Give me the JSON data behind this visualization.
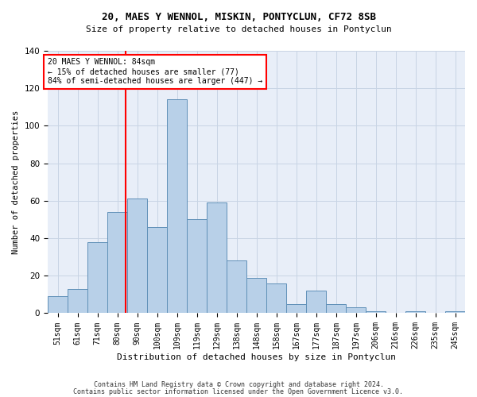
{
  "title1": "20, MAES Y WENNOL, MISKIN, PONTYCLUN, CF72 8SB",
  "title2": "Size of property relative to detached houses in Pontyclun",
  "xlabel": "Distribution of detached houses by size in Pontyclun",
  "ylabel": "Number of detached properties",
  "bin_labels": [
    "51sqm",
    "61sqm",
    "71sqm",
    "80sqm",
    "90sqm",
    "100sqm",
    "109sqm",
    "119sqm",
    "129sqm",
    "138sqm",
    "148sqm",
    "158sqm",
    "167sqm",
    "177sqm",
    "187sqm",
    "197sqm",
    "206sqm",
    "216sqm",
    "226sqm",
    "235sqm",
    "245sqm"
  ],
  "bar_values": [
    9,
    13,
    38,
    54,
    61,
    46,
    114,
    50,
    59,
    28,
    19,
    16,
    5,
    12,
    5,
    3,
    1,
    0,
    1,
    0,
    1
  ],
  "bar_color": "#b8d0e8",
  "bar_edge_color": "#6090b8",
  "vline_x_index": 3,
  "vline_color": "red",
  "annotation_text": "20 MAES Y WENNOL: 84sqm\n← 15% of detached houses are smaller (77)\n84% of semi-detached houses are larger (447) →",
  "annotation_box_color": "white",
  "annotation_box_edge": "red",
  "footer1": "Contains HM Land Registry data © Crown copyright and database right 2024.",
  "footer2": "Contains public sector information licensed under the Open Government Licence v3.0.",
  "ylim": [
    0,
    140
  ],
  "bg_color": "#e8eef8"
}
